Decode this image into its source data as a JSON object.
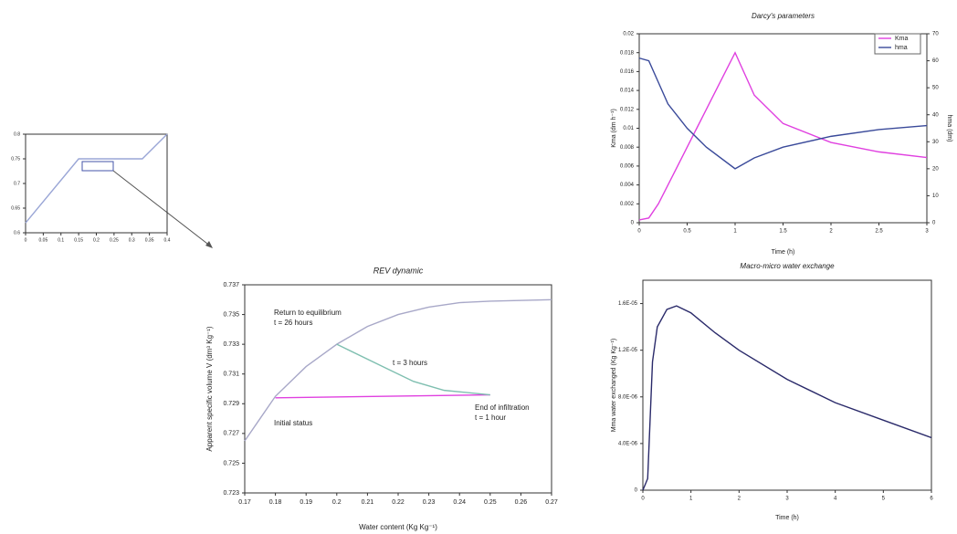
{
  "chart_data": [
    {
      "type": "line",
      "xlim": [
        0,
        0.4
      ],
      "xticks": [
        0,
        0.05,
        0.1,
        0.15,
        0.2,
        0.25,
        0.3,
        0.35,
        0.4
      ],
      "ylim": [
        0.6,
        0.8
      ],
      "yticks": [
        0.6,
        0.65,
        0.7,
        0.75,
        0.8
      ],
      "series": [
        {
          "color": "#9aa6d6",
          "x": [
            0,
            0.15,
            0.33,
            0.4
          ],
          "values": [
            0.62,
            0.75,
            0.75,
            0.8
          ]
        }
      ]
    },
    {
      "type": "line",
      "title": "Darcy's parameters",
      "x_label": "Time (h)",
      "y_label": "Kma (dm h⁻¹)",
      "y2_label": "hma (dm)",
      "xlim": [
        0,
        3
      ],
      "xticks": [
        0,
        0.5,
        1,
        1.5,
        2,
        2.5,
        3
      ],
      "ylim": [
        0,
        0.02
      ],
      "yticks": [
        0,
        0.002,
        0.004,
        0.006,
        0.008,
        0.01,
        0.012,
        0.014,
        0.016,
        0.018,
        0.02
      ],
      "y2lim": [
        0,
        70
      ],
      "y2ticks": [
        0,
        10,
        20,
        30,
        40,
        50,
        60,
        70
      ],
      "legend": "upper right",
      "series": [
        {
          "name": "Kma",
          "color": "#e040e0",
          "x": [
            0,
            0.1,
            0.2,
            0.4,
            0.6,
            0.8,
            1,
            1.2,
            1.5,
            2,
            2.5,
            3
          ],
          "values": [
            0.0003,
            0.0005,
            0.002,
            0.006,
            0.01,
            0.014,
            0.018,
            0.0135,
            0.0105,
            0.0085,
            0.0075,
            0.0069
          ]
        },
        {
          "name": "hma",
          "color": "#3a4a9a",
          "axis": "y2",
          "x": [
            0,
            0.1,
            0.2,
            0.3,
            0.5,
            0.7,
            1,
            1.2,
            1.5,
            2,
            2.5,
            3
          ],
          "values": [
            61,
            60,
            52,
            44,
            35,
            28,
            20,
            24,
            28,
            32,
            34.5,
            36
          ]
        }
      ]
    },
    {
      "type": "line",
      "title": "REV dynamic",
      "x_label": "Water content (Kg Kg⁻¹)",
      "y_label": "Apparent specific volume V (dm³ Kg⁻¹)",
      "xlim": [
        0.17,
        0.27
      ],
      "xticks": [
        0.17,
        0.18,
        0.19,
        0.2,
        0.21,
        0.22,
        0.23,
        0.24,
        0.25,
        0.26,
        0.27
      ],
      "ylim": [
        0.723,
        0.737
      ],
      "yticks": [
        0.723,
        0.725,
        0.727,
        0.729,
        0.731,
        0.733,
        0.735,
        0.737
      ],
      "annotations": [
        "Return to equilibrium",
        "t = 26 hours",
        "t = 3 hours",
        "End of infiltration",
        "t = 1 hour",
        "Initial status"
      ],
      "series": [
        {
          "color": "#a8a8c8",
          "x": [
            0.17,
            0.175,
            0.18,
            0.19,
            0.2,
            0.21,
            0.22,
            0.23,
            0.24,
            0.25,
            0.27
          ],
          "values": [
            0.7265,
            0.728,
            0.7295,
            0.7315,
            0.733,
            0.7342,
            0.735,
            0.7355,
            0.7358,
            0.7359,
            0.736
          ]
        },
        {
          "color": "#e040e0",
          "x": [
            0.18,
            0.25
          ],
          "values": [
            0.7294,
            0.7296
          ]
        },
        {
          "color": "#7fbfb0",
          "x": [
            0.25,
            0.235,
            0.225,
            0.215,
            0.2
          ],
          "values": [
            0.7296,
            0.7299,
            0.7305,
            0.7315,
            0.733
          ]
        }
      ]
    },
    {
      "type": "line",
      "title": "Macro-micro water exchange",
      "x_label": "Time (h)",
      "y_label": "Mma water exchanged (Kg Kg⁻¹)",
      "xlim": [
        0,
        6
      ],
      "xticks": [
        0,
        1,
        2,
        3,
        4,
        5,
        6
      ],
      "ylim": [
        0,
        1.8e-05
      ],
      "yticks": [
        0,
        {
          "value": 4e-06,
          "label": "4.0E-06"
        },
        {
          "value": 8e-06,
          "label": "8.0E-06"
        },
        {
          "value": 1.2e-05,
          "label": "1.2E-05"
        },
        {
          "value": 1.6e-05,
          "label": "1.6E-05"
        }
      ],
      "series": [
        {
          "color": "#2a2a6a",
          "x": [
            0,
            0.1,
            0.2,
            0.3,
            0.5,
            0.7,
            1,
            1.5,
            2,
            3,
            4,
            5,
            6
          ],
          "values": [
            0,
            1e-06,
            1.1e-05,
            1.4e-05,
            1.55e-05,
            1.58e-05,
            1.52e-05,
            1.35e-05,
            1.2e-05,
            9.5e-06,
            7.5e-06,
            6e-06,
            4.5e-06
          ]
        }
      ]
    }
  ]
}
